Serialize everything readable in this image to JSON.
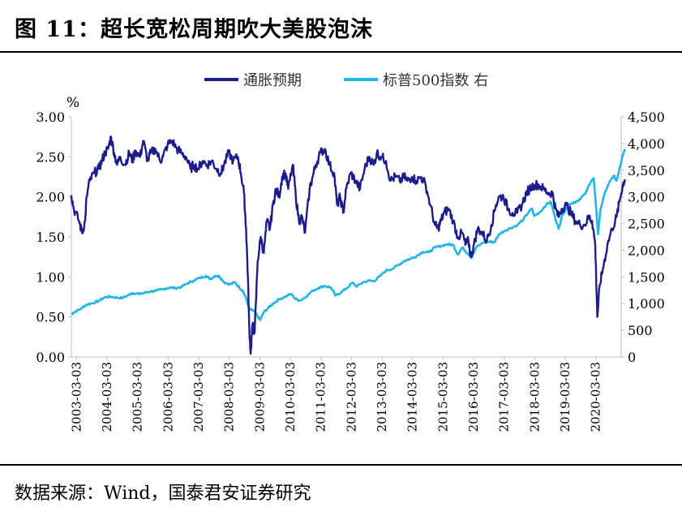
{
  "figure": {
    "title": "图 11：超长宽松周期吹大美股泡沫",
    "source": "数据来源：Wind，国泰君安证券研究"
  },
  "colors": {
    "inflation_expectation": "#1c1c8c",
    "sp500": "#22b5e8",
    "axis": "#bfbfbf",
    "text": "#000000"
  },
  "chart_data": {
    "type": "line",
    "title": "",
    "y_unit_label": "%",
    "legend": [
      "通胀预期",
      "标普500指数 右"
    ],
    "legend_position": "top-center",
    "x_tick_labels": [
      "2003-03-03",
      "2004-03-03",
      "2005-03-03",
      "2006-03-03",
      "2007-03-03",
      "2008-03-03",
      "2009-03-03",
      "2010-03-03",
      "2011-03-03",
      "2012-03-03",
      "2013-03-03",
      "2014-03-03",
      "2015-03-03",
      "2016-03-03",
      "2017-03-03",
      "2018-03-03",
      "2019-03-03",
      "2020-03-03"
    ],
    "x_range": [
      2003.0,
      2021.0
    ],
    "y_left": {
      "range": [
        0,
        3.0
      ],
      "tick_labels": [
        "0.00",
        "0.50",
        "1.00",
        "1.50",
        "2.00",
        "2.50",
        "3.00"
      ]
    },
    "y_right": {
      "range": [
        0,
        4500
      ],
      "tick_labels": [
        "0",
        "500",
        "1,000",
        "1,500",
        "2,000",
        "2,500",
        "3,000",
        "3,500",
        "4,000",
        "4,500"
      ]
    },
    "grid": false,
    "series": [
      {
        "name": "通胀预期",
        "axis": "left",
        "points": [
          [
            2003.0,
            2.02
          ],
          [
            2003.08,
            1.85
          ],
          [
            2003.25,
            1.7
          ],
          [
            2003.35,
            1.55
          ],
          [
            2003.45,
            1.7
          ],
          [
            2003.5,
            2.0
          ],
          [
            2003.6,
            2.2
          ],
          [
            2003.75,
            2.3
          ],
          [
            2003.9,
            2.35
          ],
          [
            2004.0,
            2.45
          ],
          [
            2004.1,
            2.55
          ],
          [
            2004.2,
            2.6
          ],
          [
            2004.3,
            2.75
          ],
          [
            2004.4,
            2.55
          ],
          [
            2004.5,
            2.4
          ],
          [
            2004.6,
            2.5
          ],
          [
            2004.75,
            2.4
          ],
          [
            2004.9,
            2.55
          ],
          [
            2005.0,
            2.45
          ],
          [
            2005.1,
            2.58
          ],
          [
            2005.25,
            2.5
          ],
          [
            2005.35,
            2.7
          ],
          [
            2005.5,
            2.45
          ],
          [
            2005.6,
            2.55
          ],
          [
            2005.75,
            2.6
          ],
          [
            2005.9,
            2.45
          ],
          [
            2006.0,
            2.5
          ],
          [
            2006.15,
            2.65
          ],
          [
            2006.3,
            2.7
          ],
          [
            2006.45,
            2.6
          ],
          [
            2006.6,
            2.55
          ],
          [
            2006.75,
            2.5
          ],
          [
            2006.9,
            2.35
          ],
          [
            2007.0,
            2.4
          ],
          [
            2007.15,
            2.35
          ],
          [
            2007.3,
            2.45
          ],
          [
            2007.45,
            2.4
          ],
          [
            2007.6,
            2.45
          ],
          [
            2007.75,
            2.35
          ],
          [
            2007.9,
            2.3
          ],
          [
            2008.0,
            2.4
          ],
          [
            2008.15,
            2.55
          ],
          [
            2008.3,
            2.45
          ],
          [
            2008.45,
            2.5
          ],
          [
            2008.55,
            2.3
          ],
          [
            2008.65,
            2.05
          ],
          [
            2008.72,
            1.6
          ],
          [
            2008.78,
            1.0
          ],
          [
            2008.82,
            0.4
          ],
          [
            2008.87,
            0.04
          ],
          [
            2008.93,
            0.4
          ],
          [
            2009.0,
            0.3
          ],
          [
            2009.1,
            1.2
          ],
          [
            2009.2,
            1.5
          ],
          [
            2009.3,
            1.3
          ],
          [
            2009.4,
            1.7
          ],
          [
            2009.5,
            1.6
          ],
          [
            2009.6,
            1.9
          ],
          [
            2009.7,
            2.1
          ],
          [
            2009.8,
            2.0
          ],
          [
            2009.9,
            2.25
          ],
          [
            2010.0,
            2.3
          ],
          [
            2010.1,
            2.1
          ],
          [
            2010.25,
            2.4
          ],
          [
            2010.35,
            2.0
          ],
          [
            2010.45,
            1.7
          ],
          [
            2010.55,
            1.75
          ],
          [
            2010.65,
            1.55
          ],
          [
            2010.8,
            2.1
          ],
          [
            2010.9,
            2.25
          ],
          [
            2011.0,
            2.4
          ],
          [
            2011.15,
            2.55
          ],
          [
            2011.3,
            2.6
          ],
          [
            2011.45,
            2.4
          ],
          [
            2011.6,
            2.3
          ],
          [
            2011.7,
            1.9
          ],
          [
            2011.8,
            2.0
          ],
          [
            2011.9,
            1.8
          ],
          [
            2012.0,
            2.1
          ],
          [
            2012.15,
            2.3
          ],
          [
            2012.3,
            2.2
          ],
          [
            2012.45,
            2.1
          ],
          [
            2012.6,
            2.35
          ],
          [
            2012.75,
            2.5
          ],
          [
            2012.9,
            2.4
          ],
          [
            2013.0,
            2.55
          ],
          [
            2013.15,
            2.5
          ],
          [
            2013.3,
            2.45
          ],
          [
            2013.45,
            2.2
          ],
          [
            2013.6,
            2.25
          ],
          [
            2013.75,
            2.2
          ],
          [
            2013.9,
            2.25
          ],
          [
            2014.0,
            2.2
          ],
          [
            2014.15,
            2.25
          ],
          [
            2014.3,
            2.2
          ],
          [
            2014.45,
            2.25
          ],
          [
            2014.6,
            2.15
          ],
          [
            2014.75,
            1.9
          ],
          [
            2014.9,
            1.65
          ],
          [
            2015.0,
            1.6
          ],
          [
            2015.1,
            1.7
          ],
          [
            2015.2,
            1.8
          ],
          [
            2015.35,
            1.85
          ],
          [
            2015.5,
            1.7
          ],
          [
            2015.65,
            1.5
          ],
          [
            2015.8,
            1.55
          ],
          [
            2015.9,
            1.4
          ],
          [
            2016.0,
            1.45
          ],
          [
            2016.08,
            1.25
          ],
          [
            2016.18,
            1.4
          ],
          [
            2016.3,
            1.6
          ],
          [
            2016.45,
            1.55
          ],
          [
            2016.6,
            1.45
          ],
          [
            2016.75,
            1.65
          ],
          [
            2016.9,
            1.9
          ],
          [
            2017.0,
            2.0
          ],
          [
            2017.15,
            2.0
          ],
          [
            2017.3,
            1.85
          ],
          [
            2017.45,
            1.8
          ],
          [
            2017.6,
            1.8
          ],
          [
            2017.75,
            1.9
          ],
          [
            2017.9,
            2.05
          ],
          [
            2018.0,
            2.1
          ],
          [
            2018.15,
            2.15
          ],
          [
            2018.3,
            2.15
          ],
          [
            2018.45,
            2.1
          ],
          [
            2018.6,
            2.05
          ],
          [
            2018.75,
            2.05
          ],
          [
            2018.85,
            1.85
          ],
          [
            2018.95,
            1.75
          ],
          [
            2019.05,
            1.85
          ],
          [
            2019.2,
            1.9
          ],
          [
            2019.35,
            1.8
          ],
          [
            2019.5,
            1.7
          ],
          [
            2019.65,
            1.65
          ],
          [
            2019.8,
            1.65
          ],
          [
            2019.95,
            1.75
          ],
          [
            2020.05,
            1.7
          ],
          [
            2020.15,
            1.4
          ],
          [
            2020.22,
            0.5
          ],
          [
            2020.3,
            0.9
          ],
          [
            2020.4,
            1.1
          ],
          [
            2020.55,
            1.4
          ],
          [
            2020.7,
            1.6
          ],
          [
            2020.85,
            1.75
          ],
          [
            2020.95,
            1.95
          ],
          [
            2021.05,
            2.15
          ],
          [
            2021.12,
            2.22
          ]
        ]
      },
      {
        "name": "标普500指数 右",
        "axis": "right",
        "points": [
          [
            2003.0,
            800
          ],
          [
            2003.1,
            840
          ],
          [
            2003.3,
            900
          ],
          [
            2003.5,
            980
          ],
          [
            2003.7,
            1010
          ],
          [
            2003.9,
            1050
          ],
          [
            2004.1,
            1120
          ],
          [
            2004.3,
            1130
          ],
          [
            2004.5,
            1110
          ],
          [
            2004.7,
            1110
          ],
          [
            2004.9,
            1170
          ],
          [
            2005.0,
            1200
          ],
          [
            2005.2,
            1180
          ],
          [
            2005.4,
            1200
          ],
          [
            2005.6,
            1230
          ],
          [
            2005.8,
            1240
          ],
          [
            2006.0,
            1270
          ],
          [
            2006.2,
            1300
          ],
          [
            2006.4,
            1290
          ],
          [
            2006.6,
            1310
          ],
          [
            2006.8,
            1380
          ],
          [
            2007.0,
            1430
          ],
          [
            2007.2,
            1480
          ],
          [
            2007.4,
            1520
          ],
          [
            2007.55,
            1460
          ],
          [
            2007.7,
            1520
          ],
          [
            2007.85,
            1510
          ],
          [
            2008.0,
            1400
          ],
          [
            2008.2,
            1360
          ],
          [
            2008.35,
            1400
          ],
          [
            2008.5,
            1300
          ],
          [
            2008.6,
            1250
          ],
          [
            2008.72,
            1100
          ],
          [
            2008.82,
            900
          ],
          [
            2008.9,
            880
          ],
          [
            2009.0,
            850
          ],
          [
            2009.1,
            760
          ],
          [
            2009.18,
            690
          ],
          [
            2009.3,
            840
          ],
          [
            2009.45,
            920
          ],
          [
            2009.6,
            1000
          ],
          [
            2009.8,
            1080
          ],
          [
            2010.0,
            1130
          ],
          [
            2010.2,
            1180
          ],
          [
            2010.35,
            1080
          ],
          [
            2010.5,
            1060
          ],
          [
            2010.7,
            1140
          ],
          [
            2010.9,
            1240
          ],
          [
            2011.1,
            1300
          ],
          [
            2011.3,
            1330
          ],
          [
            2011.5,
            1300
          ],
          [
            2011.65,
            1150
          ],
          [
            2011.8,
            1200
          ],
          [
            2012.0,
            1280
          ],
          [
            2012.2,
            1390
          ],
          [
            2012.35,
            1320
          ],
          [
            2012.55,
            1400
          ],
          [
            2012.75,
            1430
          ],
          [
            2012.9,
            1420
          ],
          [
            2013.1,
            1510
          ],
          [
            2013.3,
            1620
          ],
          [
            2013.5,
            1650
          ],
          [
            2013.7,
            1720
          ],
          [
            2013.9,
            1800
          ],
          [
            2014.1,
            1840
          ],
          [
            2014.3,
            1890
          ],
          [
            2014.5,
            1970
          ],
          [
            2014.7,
            1960
          ],
          [
            2014.9,
            2050
          ],
          [
            2015.1,
            2080
          ],
          [
            2015.3,
            2110
          ],
          [
            2015.5,
            2100
          ],
          [
            2015.65,
            1920
          ],
          [
            2015.8,
            2050
          ],
          [
            2016.0,
            1930
          ],
          [
            2016.1,
            1860
          ],
          [
            2016.25,
            2050
          ],
          [
            2016.5,
            2150
          ],
          [
            2016.7,
            2160
          ],
          [
            2016.85,
            2150
          ],
          [
            2017.0,
            2300
          ],
          [
            2017.2,
            2370
          ],
          [
            2017.4,
            2420
          ],
          [
            2017.6,
            2470
          ],
          [
            2017.8,
            2580
          ],
          [
            2017.95,
            2700
          ],
          [
            2018.08,
            2780
          ],
          [
            2018.15,
            2640
          ],
          [
            2018.35,
            2720
          ],
          [
            2018.55,
            2860
          ],
          [
            2018.7,
            2900
          ],
          [
            2018.82,
            2650
          ],
          [
            2018.95,
            2400
          ],
          [
            2019.05,
            2620
          ],
          [
            2019.25,
            2850
          ],
          [
            2019.45,
            2900
          ],
          [
            2019.6,
            2920
          ],
          [
            2019.8,
            3050
          ],
          [
            2019.95,
            3220
          ],
          [
            2020.1,
            3350
          ],
          [
            2020.18,
            2800
          ],
          [
            2020.24,
            2300
          ],
          [
            2020.32,
            2750
          ],
          [
            2020.45,
            3050
          ],
          [
            2020.6,
            3250
          ],
          [
            2020.75,
            3400
          ],
          [
            2020.85,
            3300
          ],
          [
            2020.95,
            3550
          ],
          [
            2021.05,
            3780
          ],
          [
            2021.12,
            3900
          ]
        ]
      }
    ]
  }
}
